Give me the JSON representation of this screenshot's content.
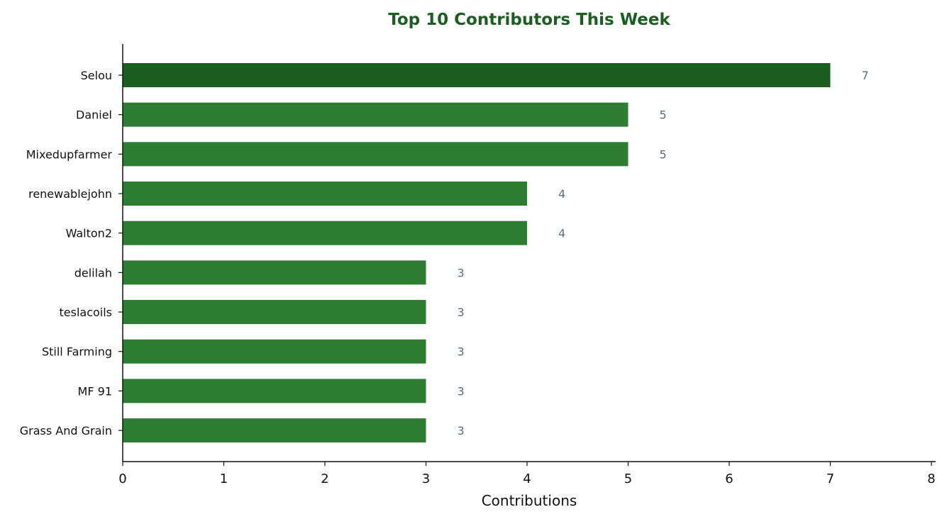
{
  "chart_data": {
    "type": "bar",
    "orientation": "horizontal",
    "title": "Top 10 Contributors This Week",
    "xlabel": "Contributions",
    "ylabel": "",
    "categories": [
      "Selou",
      "Daniel",
      "Mixedupfarmer",
      "renewablejohn",
      "Walton2",
      "delilah",
      "teslacoils",
      "Still Farming",
      "MF 91",
      "Grass And Grain"
    ],
    "values": [
      7,
      5,
      5,
      4,
      4,
      3,
      3,
      3,
      3,
      3
    ],
    "xlim": [
      0,
      8
    ],
    "xticks": [
      "0",
      "1",
      "2",
      "3",
      "4",
      "5",
      "6",
      "7",
      "8"
    ],
    "grid": false,
    "legend": "none",
    "colors": {
      "title": "#1b5e20",
      "top_bar": "#1b5e20",
      "bar": "#2e7d32",
      "value_label": "#5a6e7e",
      "axis": "#111111"
    }
  }
}
